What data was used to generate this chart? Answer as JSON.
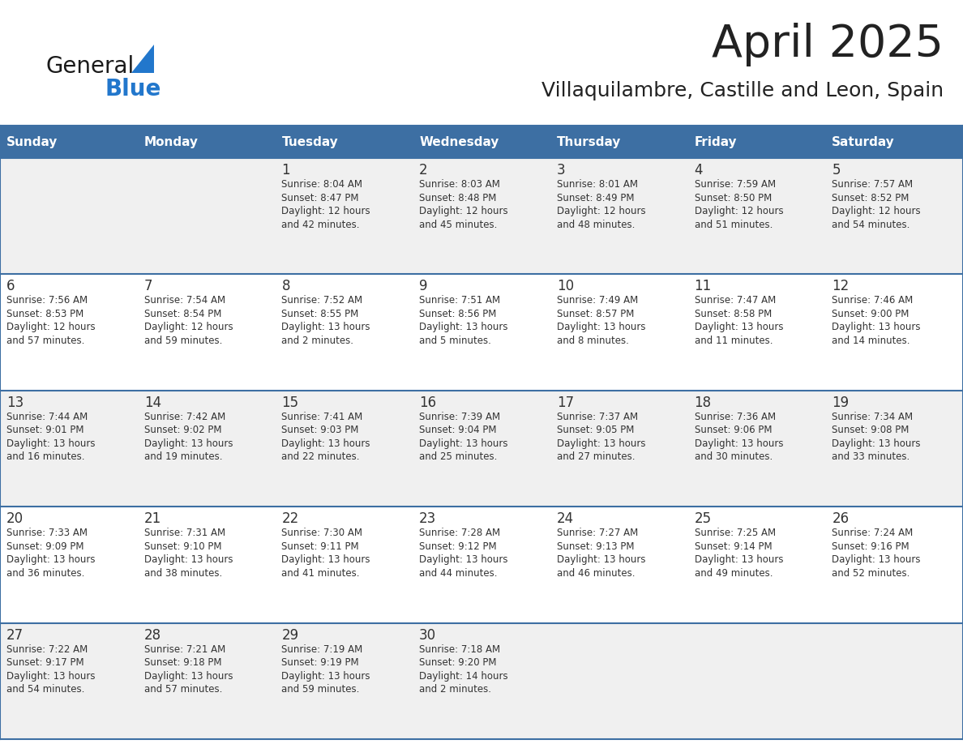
{
  "title": "April 2025",
  "subtitle": "Villaquilambre, Castille and Leon, Spain",
  "days_of_week": [
    "Sunday",
    "Monday",
    "Tuesday",
    "Wednesday",
    "Thursday",
    "Friday",
    "Saturday"
  ],
  "header_bg": "#3d6fa3",
  "header_text": "#ffffff",
  "cell_bg_odd": "#f0f0f0",
  "cell_bg_even": "#ffffff",
  "cell_border": "#3d6fa3",
  "title_color": "#222222",
  "subtitle_color": "#222222",
  "text_color": "#333333",
  "logo_general_color": "#1a1a1a",
  "logo_blue_color": "#2277cc",
  "logo_triangle_color": "#2277cc",
  "calendar": [
    [
      null,
      null,
      {
        "day": 1,
        "sunrise": "8:04 AM",
        "sunset": "8:47 PM",
        "daylight": "12 hours and 42 minutes."
      },
      {
        "day": 2,
        "sunrise": "8:03 AM",
        "sunset": "8:48 PM",
        "daylight": "12 hours and 45 minutes."
      },
      {
        "day": 3,
        "sunrise": "8:01 AM",
        "sunset": "8:49 PM",
        "daylight": "12 hours and 48 minutes."
      },
      {
        "day": 4,
        "sunrise": "7:59 AM",
        "sunset": "8:50 PM",
        "daylight": "12 hours and 51 minutes."
      },
      {
        "day": 5,
        "sunrise": "7:57 AM",
        "sunset": "8:52 PM",
        "daylight": "12 hours and 54 minutes."
      }
    ],
    [
      {
        "day": 6,
        "sunrise": "7:56 AM",
        "sunset": "8:53 PM",
        "daylight": "12 hours and 57 minutes."
      },
      {
        "day": 7,
        "sunrise": "7:54 AM",
        "sunset": "8:54 PM",
        "daylight": "12 hours and 59 minutes."
      },
      {
        "day": 8,
        "sunrise": "7:52 AM",
        "sunset": "8:55 PM",
        "daylight": "13 hours and 2 minutes."
      },
      {
        "day": 9,
        "sunrise": "7:51 AM",
        "sunset": "8:56 PM",
        "daylight": "13 hours and 5 minutes."
      },
      {
        "day": 10,
        "sunrise": "7:49 AM",
        "sunset": "8:57 PM",
        "daylight": "13 hours and 8 minutes."
      },
      {
        "day": 11,
        "sunrise": "7:47 AM",
        "sunset": "8:58 PM",
        "daylight": "13 hours and 11 minutes."
      },
      {
        "day": 12,
        "sunrise": "7:46 AM",
        "sunset": "9:00 PM",
        "daylight": "13 hours and 14 minutes."
      }
    ],
    [
      {
        "day": 13,
        "sunrise": "7:44 AM",
        "sunset": "9:01 PM",
        "daylight": "13 hours and 16 minutes."
      },
      {
        "day": 14,
        "sunrise": "7:42 AM",
        "sunset": "9:02 PM",
        "daylight": "13 hours and 19 minutes."
      },
      {
        "day": 15,
        "sunrise": "7:41 AM",
        "sunset": "9:03 PM",
        "daylight": "13 hours and 22 minutes."
      },
      {
        "day": 16,
        "sunrise": "7:39 AM",
        "sunset": "9:04 PM",
        "daylight": "13 hours and 25 minutes."
      },
      {
        "day": 17,
        "sunrise": "7:37 AM",
        "sunset": "9:05 PM",
        "daylight": "13 hours and 27 minutes."
      },
      {
        "day": 18,
        "sunrise": "7:36 AM",
        "sunset": "9:06 PM",
        "daylight": "13 hours and 30 minutes."
      },
      {
        "day": 19,
        "sunrise": "7:34 AM",
        "sunset": "9:08 PM",
        "daylight": "13 hours and 33 minutes."
      }
    ],
    [
      {
        "day": 20,
        "sunrise": "7:33 AM",
        "sunset": "9:09 PM",
        "daylight": "13 hours and 36 minutes."
      },
      {
        "day": 21,
        "sunrise": "7:31 AM",
        "sunset": "9:10 PM",
        "daylight": "13 hours and 38 minutes."
      },
      {
        "day": 22,
        "sunrise": "7:30 AM",
        "sunset": "9:11 PM",
        "daylight": "13 hours and 41 minutes."
      },
      {
        "day": 23,
        "sunrise": "7:28 AM",
        "sunset": "9:12 PM",
        "daylight": "13 hours and 44 minutes."
      },
      {
        "day": 24,
        "sunrise": "7:27 AM",
        "sunset": "9:13 PM",
        "daylight": "13 hours and 46 minutes."
      },
      {
        "day": 25,
        "sunrise": "7:25 AM",
        "sunset": "9:14 PM",
        "daylight": "13 hours and 49 minutes."
      },
      {
        "day": 26,
        "sunrise": "7:24 AM",
        "sunset": "9:16 PM",
        "daylight": "13 hours and 52 minutes."
      }
    ],
    [
      {
        "day": 27,
        "sunrise": "7:22 AM",
        "sunset": "9:17 PM",
        "daylight": "13 hours and 54 minutes."
      },
      {
        "day": 28,
        "sunrise": "7:21 AM",
        "sunset": "9:18 PM",
        "daylight": "13 hours and 57 minutes."
      },
      {
        "day": 29,
        "sunrise": "7:19 AM",
        "sunset": "9:19 PM",
        "daylight": "13 hours and 59 minutes."
      },
      {
        "day": 30,
        "sunrise": "7:18 AM",
        "sunset": "9:20 PM",
        "daylight": "14 hours and 2 minutes."
      },
      null,
      null,
      null
    ]
  ]
}
